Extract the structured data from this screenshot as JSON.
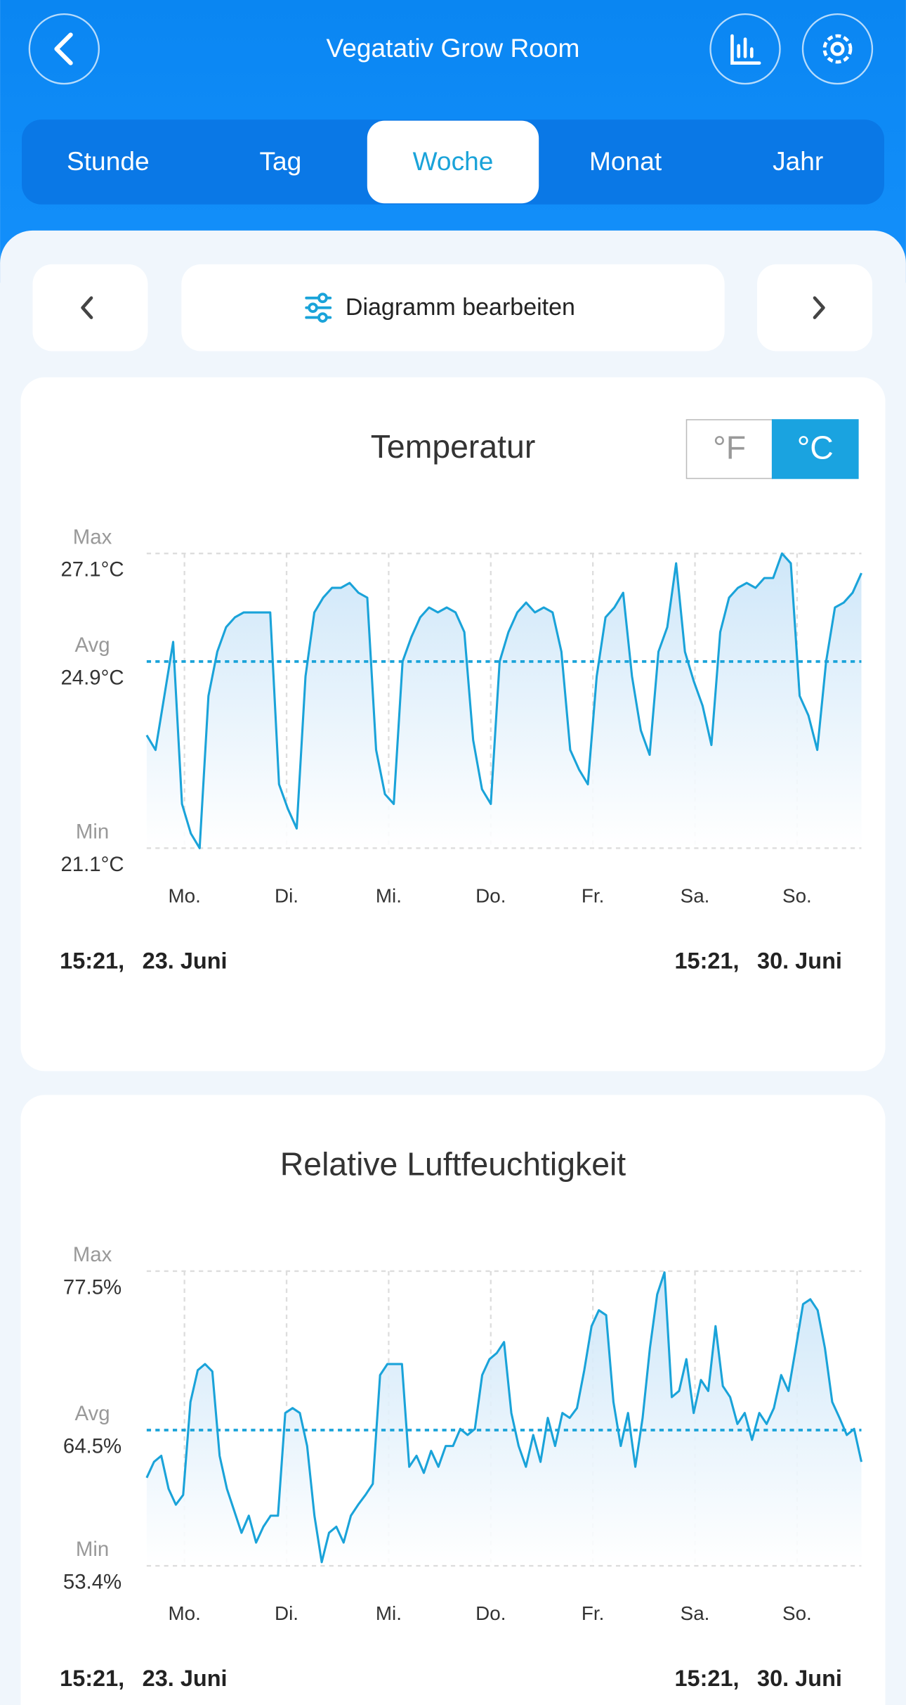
{
  "header": {
    "title": "Vegatativ Grow Room"
  },
  "tabs": [
    "Stunde",
    "Tag",
    "Woche",
    "Monat",
    "Jahr"
  ],
  "selected_tab": "Woche",
  "edit_button": "Diagramm bearbeiten",
  "charts": [
    {
      "type": "line",
      "title": "Temperatur",
      "units": [
        "°F",
        "°C"
      ],
      "selected_unit": "°C",
      "color": "#1aa3d9",
      "ylim": [
        21.1,
        27.1
      ],
      "yticks": [
        {
          "value": 27.1,
          "label": "27.1°C",
          "name": "Max"
        },
        {
          "value": 24.9,
          "label": "24.9°C",
          "name": "Avg"
        },
        {
          "value": 21.1,
          "label": "21.1°C",
          "name": "Min"
        }
      ],
      "x_labels": [
        "Mo.",
        "Di.",
        "Mi.",
        "Do.",
        "Fr.",
        "Sa.",
        "So."
      ],
      "start": {
        "time": "15:21,",
        "date": "23. Juni"
      },
      "end": {
        "time": "15:21,",
        "date": "30. Juni"
      },
      "values": [
        23.4,
        23.1,
        24.2,
        25.3,
        22.0,
        21.4,
        21.1,
        24.2,
        25.1,
        25.6,
        25.8,
        25.9,
        25.9,
        25.9,
        25.9,
        22.4,
        21.9,
        21.5,
        24.6,
        25.9,
        26.2,
        26.4,
        26.4,
        26.5,
        26.3,
        26.2,
        23.1,
        22.2,
        22.0,
        24.9,
        25.4,
        25.8,
        26.0,
        25.9,
        26.0,
        25.9,
        25.5,
        23.3,
        22.3,
        22.0,
        24.9,
        25.5,
        25.9,
        26.1,
        25.9,
        26.0,
        25.9,
        25.1,
        23.1,
        22.7,
        22.4,
        24.6,
        25.8,
        26.0,
        26.3,
        24.6,
        23.5,
        23.0,
        25.1,
        25.6,
        26.9,
        25.1,
        24.5,
        24.0,
        23.2,
        25.5,
        26.2,
        26.4,
        26.5,
        26.4,
        26.6,
        26.6,
        27.1,
        26.9,
        24.2,
        23.8,
        23.1,
        24.9,
        26.0,
        26.1,
        26.3,
        26.7
      ]
    },
    {
      "type": "line",
      "title": "Relative Luftfeuchtigkeit",
      "color": "#1aa3d9",
      "ylim": [
        53.4,
        77.5
      ],
      "yticks": [
        {
          "value": 77.5,
          "label": "77.5%",
          "name": "Max"
        },
        {
          "value": 64.5,
          "label": "64.5%",
          "name": "Avg"
        },
        {
          "value": 53.4,
          "label": "53.4%",
          "name": "Min"
        }
      ],
      "x_labels": [
        "Mo.",
        "Di.",
        "Mi.",
        "Do.",
        "Fr.",
        "Sa.",
        "So."
      ],
      "start": {
        "time": "15:21,",
        "date": "23. Juni"
      },
      "end": {
        "time": "15:21,",
        "date": "30. Juni"
      },
      "values": [
        60.6,
        61.9,
        62.4,
        59.7,
        58.4,
        59.2,
        66.8,
        69.4,
        69.9,
        69.3,
        62.4,
        59.7,
        57.9,
        56.1,
        57.5,
        55.3,
        56.6,
        57.5,
        57.5,
        65.9,
        66.3,
        65.9,
        63.2,
        57.5,
        53.7,
        56.1,
        56.6,
        55.3,
        57.5,
        58.4,
        59.2,
        60.1,
        69.0,
        69.9,
        69.9,
        69.9,
        61.5,
        62.4,
        61.0,
        62.8,
        61.5,
        63.2,
        63.2,
        64.6,
        64.1,
        64.6,
        69.0,
        70.3,
        70.8,
        71.7,
        65.9,
        63.2,
        61.5,
        64.1,
        61.9,
        65.5,
        63.2,
        65.9,
        65.5,
        66.3,
        69.4,
        73.0,
        74.3,
        73.9,
        66.8,
        63.2,
        65.9,
        61.5,
        65.5,
        71.2,
        75.6,
        77.4,
        67.2,
        67.7,
        70.3,
        65.9,
        68.6,
        67.7,
        73.0,
        68.1,
        67.2,
        65.0,
        65.9,
        63.7,
        65.9,
        65.0,
        66.3,
        69.0,
        67.7,
        71.2,
        74.8,
        75.2,
        74.3,
        71.2,
        66.8,
        65.5,
        64.1,
        64.6,
        61.9
      ]
    }
  ]
}
